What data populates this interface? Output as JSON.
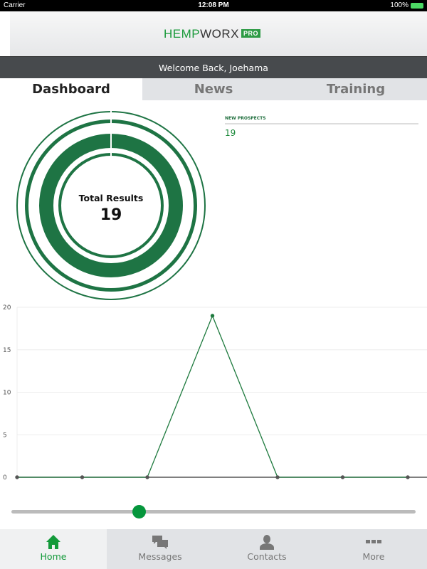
{
  "status_bar": {
    "carrier": "Carrier",
    "time": "12:08 PM",
    "battery": "100%"
  },
  "header": {
    "logo": {
      "part1": "HEMP",
      "part2": "WORX",
      "badge": "PRO"
    },
    "welcome": "Welcome Back, Joehama"
  },
  "tabs": [
    {
      "label": "Dashboard",
      "active": true
    },
    {
      "label": "News"
    },
    {
      "label": "Training"
    }
  ],
  "donut": {
    "title": "Total Results",
    "value": "19",
    "color": "#1e7444"
  },
  "new_prospects": {
    "label": "NEW PROSPECTS",
    "value": "19"
  },
  "chart_data": {
    "type": "line",
    "x": [
      1,
      2,
      3,
      4,
      5,
      6,
      7
    ],
    "values": [
      0,
      0,
      0,
      19,
      0,
      0,
      0
    ],
    "ylim": [
      0,
      20
    ],
    "yticks": [
      "0",
      "5",
      "10",
      "15",
      "20"
    ],
    "line_color": "#1e7a3e",
    "grid": true
  },
  "slider": {
    "value": 0.315,
    "color": "#05963c"
  },
  "bottom_nav": [
    {
      "label": "Home",
      "icon": "home-icon",
      "active": true
    },
    {
      "label": "Messages",
      "icon": "messages-icon"
    },
    {
      "label": "Contacts",
      "icon": "contact-icon"
    },
    {
      "label": "More",
      "icon": "more-icon"
    }
  ]
}
